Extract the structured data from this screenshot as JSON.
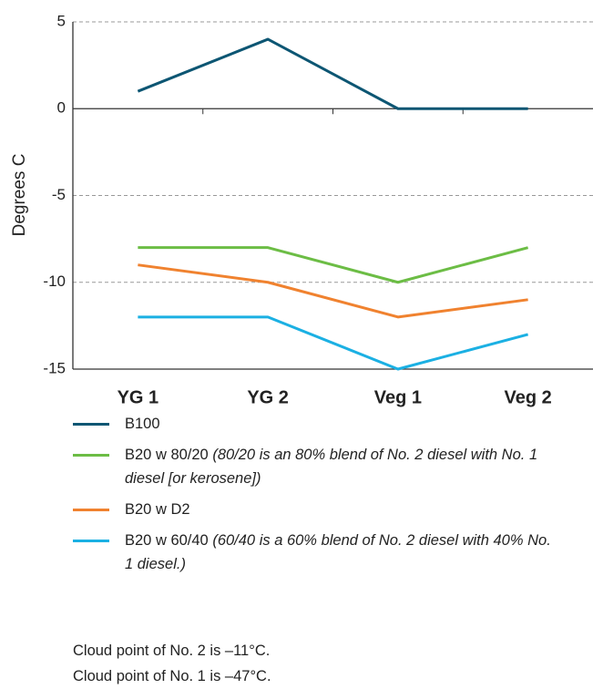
{
  "chart_data": {
    "type": "line",
    "y_label": "Degrees C",
    "categories": [
      "YG 1",
      "YG 2",
      "Veg 1",
      "Veg 2"
    ],
    "series": [
      {
        "name": "B100",
        "color": "#0d5673",
        "values": [
          1,
          4,
          0,
          0
        ]
      },
      {
        "name": "B20 w 80/20",
        "note": "(80/20 is an 80% blend of No. 2 diesel with No. 1 diesel [or kerosene])",
        "color": "#6cbd45",
        "values": [
          -8,
          -8,
          -10,
          -8
        ]
      },
      {
        "name": "B20 w D2",
        "color": "#f0822f",
        "values": [
          -9,
          -10,
          -12,
          -11
        ]
      },
      {
        "name": "B20 w 60/40",
        "note": "(60/40 is a 60% blend of No. 2 diesel with 40% No. 1 diesel.)",
        "color": "#1bb0e3",
        "values": [
          -12,
          -12,
          -15,
          -13
        ]
      }
    ],
    "ylim": [
      -15,
      5
    ],
    "yticks": [
      5,
      0,
      -5,
      -10,
      -15
    ],
    "grid": true,
    "notes": [
      "Cloud point of No. 2 is –11°C.",
      "Cloud point of No. 1 is –47°C."
    ]
  }
}
